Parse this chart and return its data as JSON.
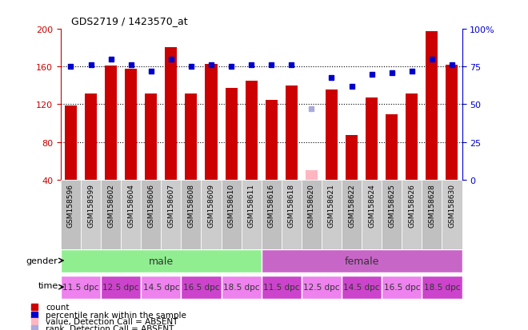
{
  "title": "GDS2719 / 1423570_at",
  "samples": [
    "GSM158596",
    "GSM158599",
    "GSM158602",
    "GSM158604",
    "GSM158606",
    "GSM158607",
    "GSM158608",
    "GSM158609",
    "GSM158610",
    "GSM158611",
    "GSM158616",
    "GSM158618",
    "GSM158620",
    "GSM158621",
    "GSM158622",
    "GSM158624",
    "GSM158625",
    "GSM158626",
    "GSM158628",
    "GSM158630"
  ],
  "count_values": [
    119,
    131,
    161,
    158,
    131,
    181,
    131,
    163,
    137,
    145,
    125,
    140,
    50,
    136,
    87,
    127,
    109,
    131,
    198,
    162
  ],
  "count_absent": [
    false,
    false,
    false,
    false,
    false,
    false,
    false,
    false,
    false,
    false,
    false,
    false,
    true,
    false,
    false,
    false,
    false,
    false,
    false,
    false
  ],
  "percentile_values": [
    75,
    76,
    80,
    76,
    72,
    80,
    75,
    76,
    75,
    76,
    76,
    76,
    null,
    68,
    62,
    70,
    71,
    72,
    80,
    76
  ],
  "percentile_absent": [
    false,
    false,
    false,
    false,
    false,
    false,
    false,
    false,
    false,
    false,
    false,
    false,
    true,
    false,
    false,
    false,
    false,
    false,
    false,
    false
  ],
  "absent_rank_value": 47,
  "gender_groups": [
    {
      "label": "male",
      "start": 0,
      "end": 10,
      "color": "#90EE90"
    },
    {
      "label": "female",
      "start": 10,
      "end": 20,
      "color": "#C866C8"
    }
  ],
  "time_groups": [
    {
      "label": "11.5 dpc",
      "start": 0,
      "end": 2,
      "color": "#EE82EE"
    },
    {
      "label": "12.5 dpc",
      "start": 2,
      "end": 4,
      "color": "#CC44CC"
    },
    {
      "label": "14.5 dpc",
      "start": 4,
      "end": 6,
      "color": "#EE82EE"
    },
    {
      "label": "16.5 dpc",
      "start": 6,
      "end": 8,
      "color": "#CC44CC"
    },
    {
      "label": "18.5 dpc",
      "start": 8,
      "end": 10,
      "color": "#EE82EE"
    },
    {
      "label": "11.5 dpc",
      "start": 10,
      "end": 12,
      "color": "#CC44CC"
    },
    {
      "label": "12.5 dpc",
      "start": 12,
      "end": 14,
      "color": "#EE82EE"
    },
    {
      "label": "14.5 dpc",
      "start": 14,
      "end": 16,
      "color": "#CC44CC"
    },
    {
      "label": "16.5 dpc",
      "start": 16,
      "end": 18,
      "color": "#EE82EE"
    },
    {
      "label": "18.5 dpc",
      "start": 18,
      "end": 20,
      "color": "#CC44CC"
    }
  ],
  "ylim_left": [
    40,
    200
  ],
  "ylim_right": [
    0,
    100
  ],
  "yticks_left": [
    40,
    80,
    120,
    160,
    200
  ],
  "yticks_right": [
    0,
    25,
    50,
    75,
    100
  ],
  "bar_color": "#CC0000",
  "bar_absent_color": "#FFB6C1",
  "dot_color": "#0000CC",
  "dot_absent_color": "#AAAADD",
  "bg_color": "#FFFFFF",
  "label_bg_color": "#C8C8C8",
  "legend_items": [
    {
      "color": "#CC0000",
      "label": "count"
    },
    {
      "color": "#0000CC",
      "label": "percentile rank within the sample"
    },
    {
      "color": "#FFB6C1",
      "label": "value, Detection Call = ABSENT"
    },
    {
      "color": "#AAAADD",
      "label": "rank, Detection Call = ABSENT"
    }
  ]
}
